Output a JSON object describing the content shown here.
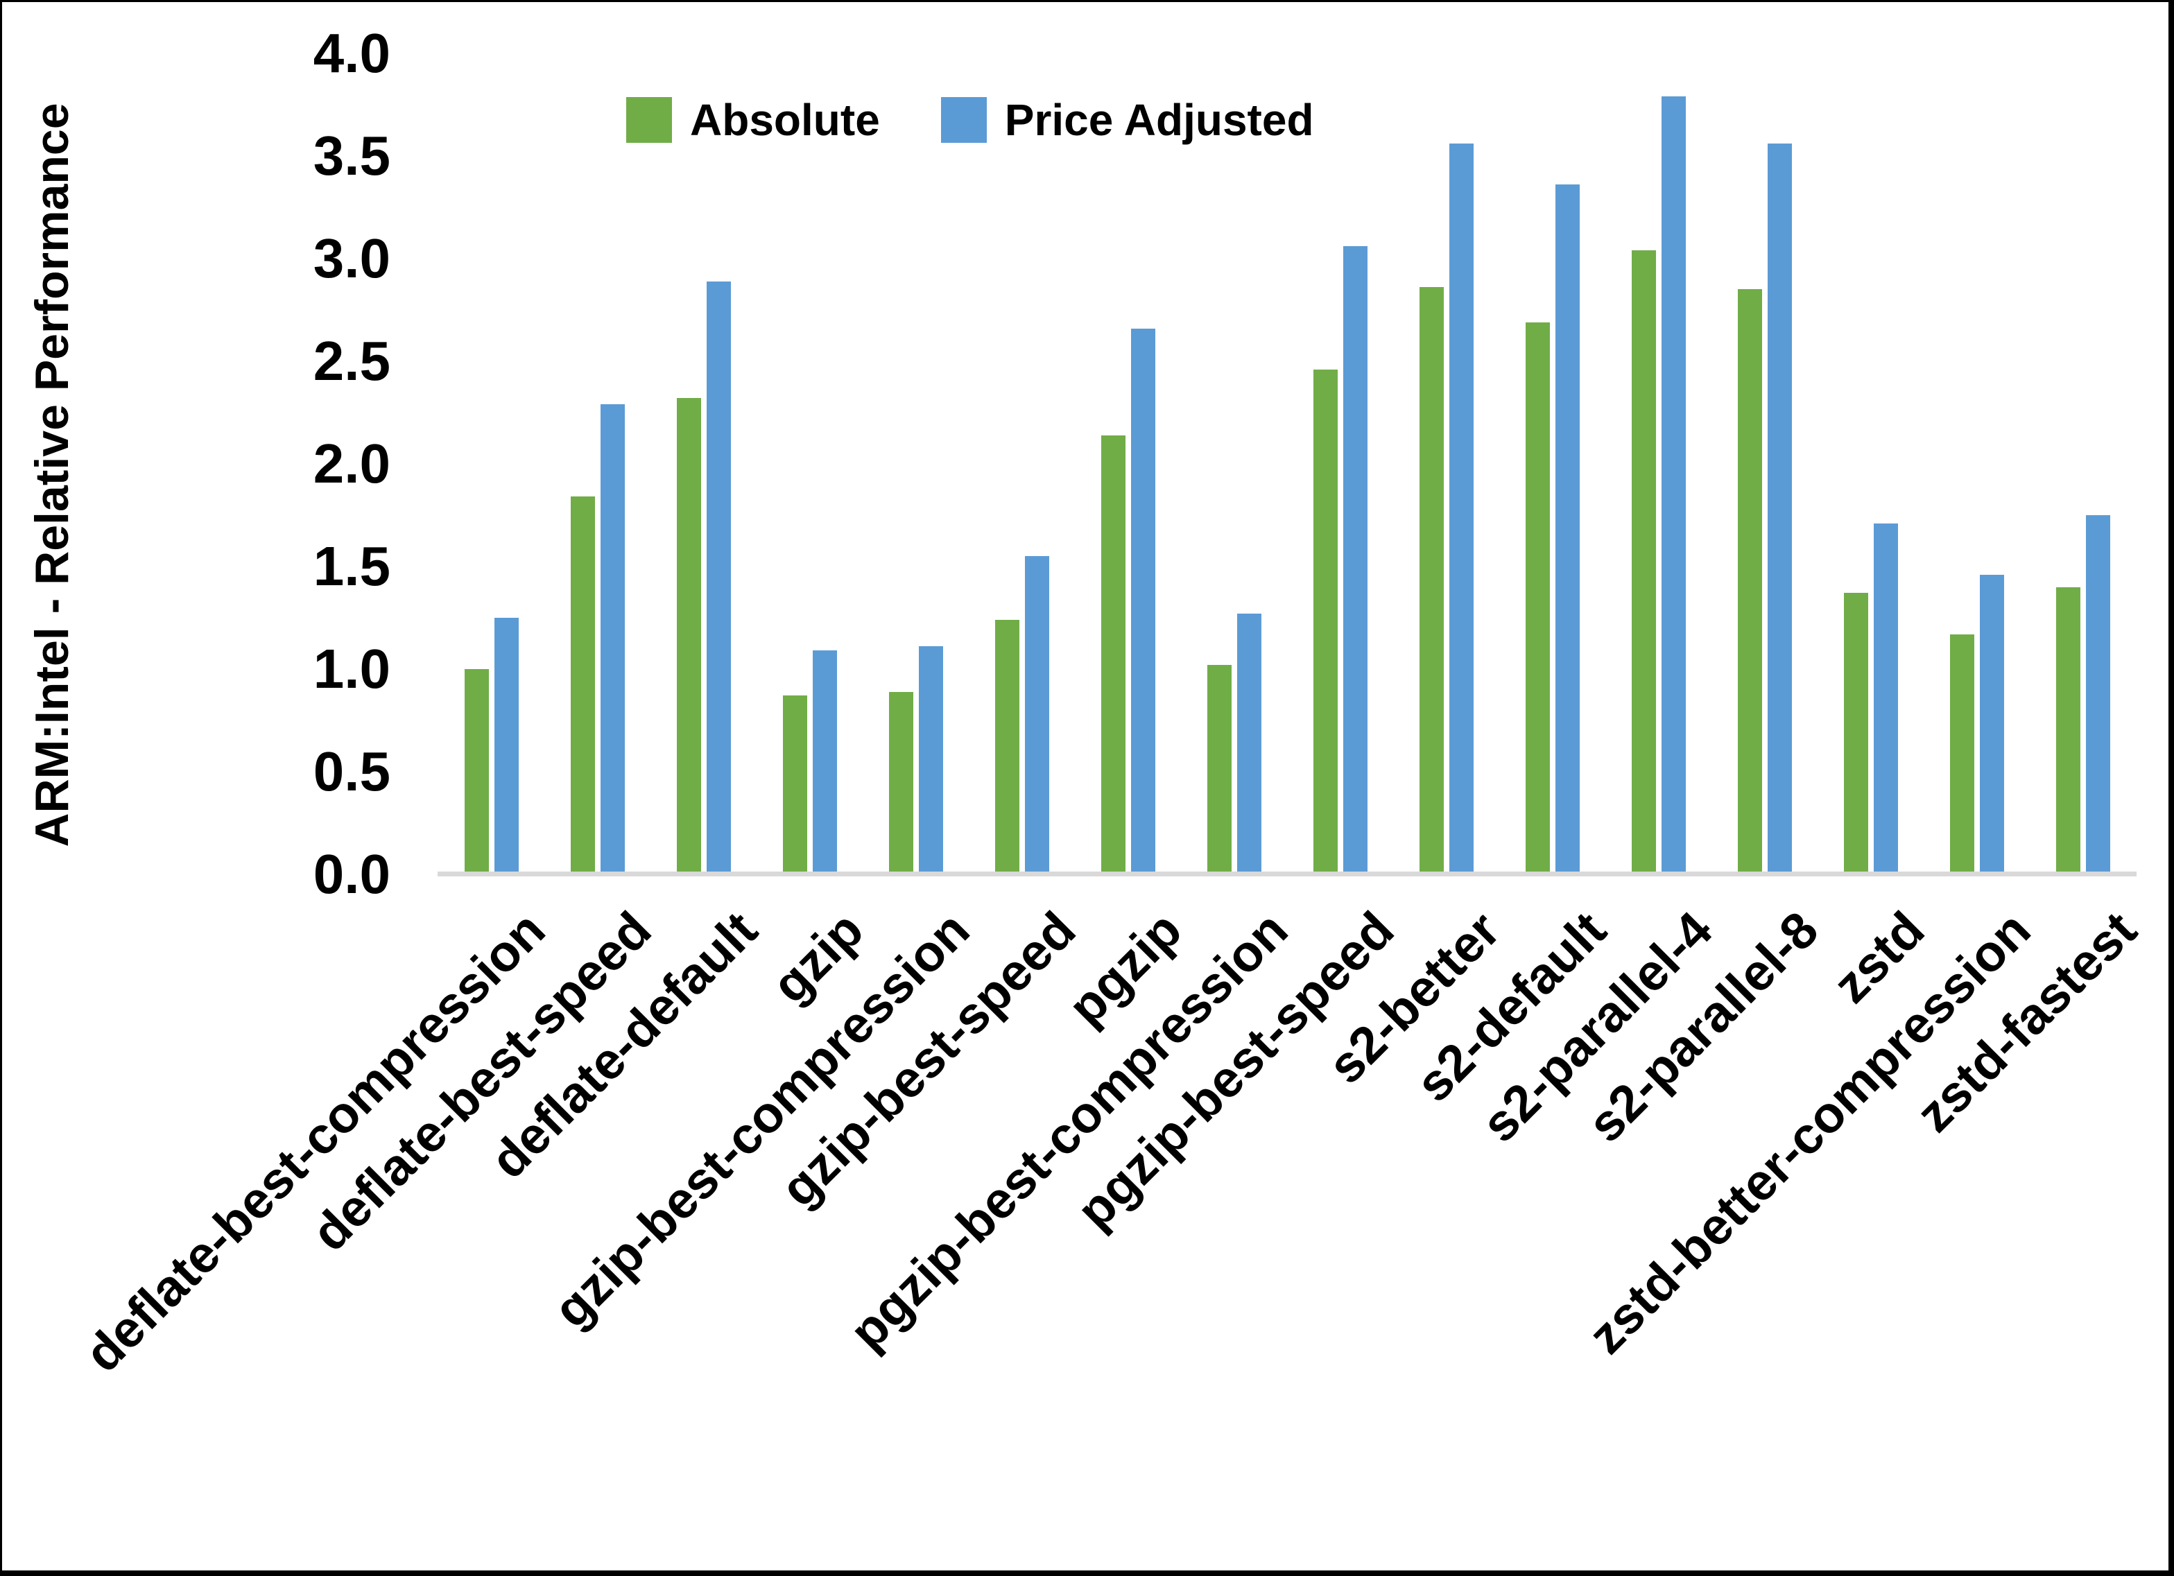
{
  "chart_data": {
    "type": "bar",
    "title": "",
    "ylabel": "ARM:Intel - Relative Performance",
    "xlabel": "",
    "ylim": [
      0.0,
      4.0
    ],
    "ytick_step": 0.5,
    "ytick_labels": [
      "0.0",
      "0.5",
      "1.0",
      "1.5",
      "2.0",
      "2.5",
      "3.0",
      "3.5",
      "4.0"
    ],
    "grid": false,
    "legend_position": "top-center",
    "categories": [
      "deflate-best-compression",
      "deflate-best-speed",
      "deflate-default",
      "gzip",
      "gzip-best-compression",
      "gzip-best-speed",
      "pgzip",
      "pgzip-best-compression",
      "pgzip-best-speed",
      "s2-better",
      "s2-default",
      "s2-parallel-4",
      "s2-parallel-8",
      "zstd",
      "zstd-better-compression",
      "zstd-fastest"
    ],
    "series": [
      {
        "name": "Absolute",
        "color": "#70AD47",
        "values": [
          1.0,
          1.84,
          2.32,
          0.87,
          0.89,
          1.24,
          2.14,
          1.02,
          2.46,
          2.86,
          2.69,
          3.04,
          2.85,
          1.37,
          1.17,
          1.4
        ]
      },
      {
        "name": "Price Adjusted",
        "color": "#5B9BD5",
        "values": [
          1.25,
          2.29,
          2.89,
          1.09,
          1.11,
          1.55,
          2.66,
          1.27,
          3.06,
          3.56,
          3.36,
          3.79,
          3.56,
          1.71,
          1.46,
          1.75
        ]
      }
    ]
  },
  "colors": {
    "background": "#FFFFFF",
    "border": "#000000",
    "axis_line": "#D9D9D9",
    "text": "#000000"
  }
}
